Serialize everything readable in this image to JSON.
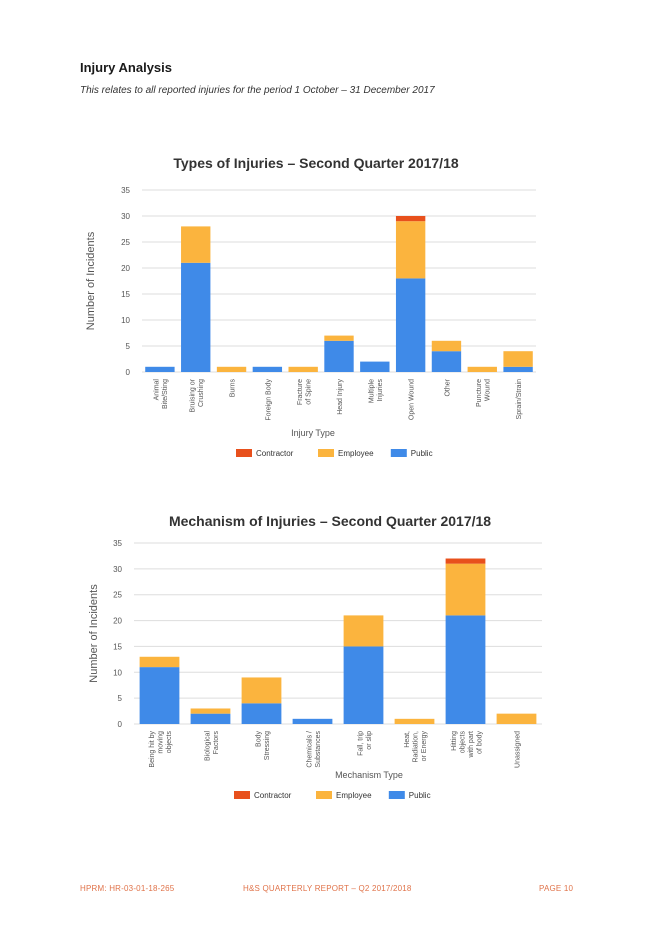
{
  "section": {
    "title": "Injury Analysis",
    "subtitle": "This relates to all reported injuries for the period 1 October – 31 December 2017"
  },
  "colors": {
    "contractor": "#e8501c",
    "employee": "#fbb43e",
    "public": "#3f8ae8",
    "grid": "#dddddd",
    "axis_text": "#555555"
  },
  "chart_data": [
    {
      "type": "bar",
      "stacked": true,
      "title": "Types of Injuries – Second Quarter 2017/18",
      "xlabel": "Injury Type",
      "ylabel": "Number of Incidents",
      "ylim": [
        0,
        35
      ],
      "yticks": [
        0,
        5,
        10,
        15,
        20,
        25,
        30,
        35
      ],
      "categories": [
        [
          "Animal",
          "Bite/Sting"
        ],
        [
          "Bruising or",
          "Crushing"
        ],
        [
          "Burns"
        ],
        [
          "Foreign Body"
        ],
        [
          "Fracture",
          "of Spine"
        ],
        [
          "Head Injury"
        ],
        [
          "Multiple",
          "Injuries"
        ],
        [
          "Open Wound"
        ],
        [
          "Other"
        ],
        [
          "Puncture",
          "Wound"
        ],
        [
          "Sprain/Strain"
        ]
      ],
      "series": [
        {
          "name": "Public",
          "values": [
            1,
            21,
            0,
            1,
            0,
            6,
            2,
            18,
            4,
            0,
            1
          ]
        },
        {
          "name": "Employee",
          "values": [
            0,
            7,
            1,
            0,
            1,
            1,
            0,
            11,
            2,
            1,
            3
          ]
        },
        {
          "name": "Contractor",
          "values": [
            0,
            0,
            0,
            0,
            0,
            0,
            0,
            1,
            0,
            0,
            0
          ]
        }
      ],
      "legend": [
        "Contractor",
        "Employee",
        "Public"
      ],
      "legend_position": "bottom"
    },
    {
      "type": "bar",
      "stacked": true,
      "title": "Mechanism of Injuries – Second Quarter 2017/18",
      "xlabel": "Mechanism Type",
      "ylabel": "Number of Incidents",
      "ylim": [
        0,
        35
      ],
      "yticks": [
        0,
        5,
        10,
        15,
        20,
        25,
        30,
        35
      ],
      "categories": [
        [
          "Being hit by",
          "moving",
          "objects"
        ],
        [
          "Biological",
          "Factors"
        ],
        [
          "Body",
          "Stressing"
        ],
        [
          "Chemicals /",
          "Substances"
        ],
        [
          "Fall, trip",
          "or slip"
        ],
        [
          "Heat,",
          "Radiation,",
          "or Energy"
        ],
        [
          "Hitting",
          "objects",
          "with part",
          "of body"
        ],
        [
          "Unassigned"
        ]
      ],
      "series": [
        {
          "name": "Public",
          "values": [
            11,
            2,
            4,
            1,
            15,
            0,
            21,
            0
          ]
        },
        {
          "name": "Employee",
          "values": [
            2,
            1,
            5,
            0,
            6,
            1,
            10,
            2
          ]
        },
        {
          "name": "Contractor",
          "values": [
            0,
            0,
            0,
            0,
            0,
            0,
            1,
            0
          ]
        }
      ],
      "legend": [
        "Contractor",
        "Employee",
        "Public"
      ],
      "legend_position": "bottom"
    }
  ],
  "footer": {
    "left": "HPRM: HR-03-01-18-265",
    "center": "H&S QUARTERLY REPORT – Q2 2017/2018",
    "right": "PAGE 10"
  }
}
